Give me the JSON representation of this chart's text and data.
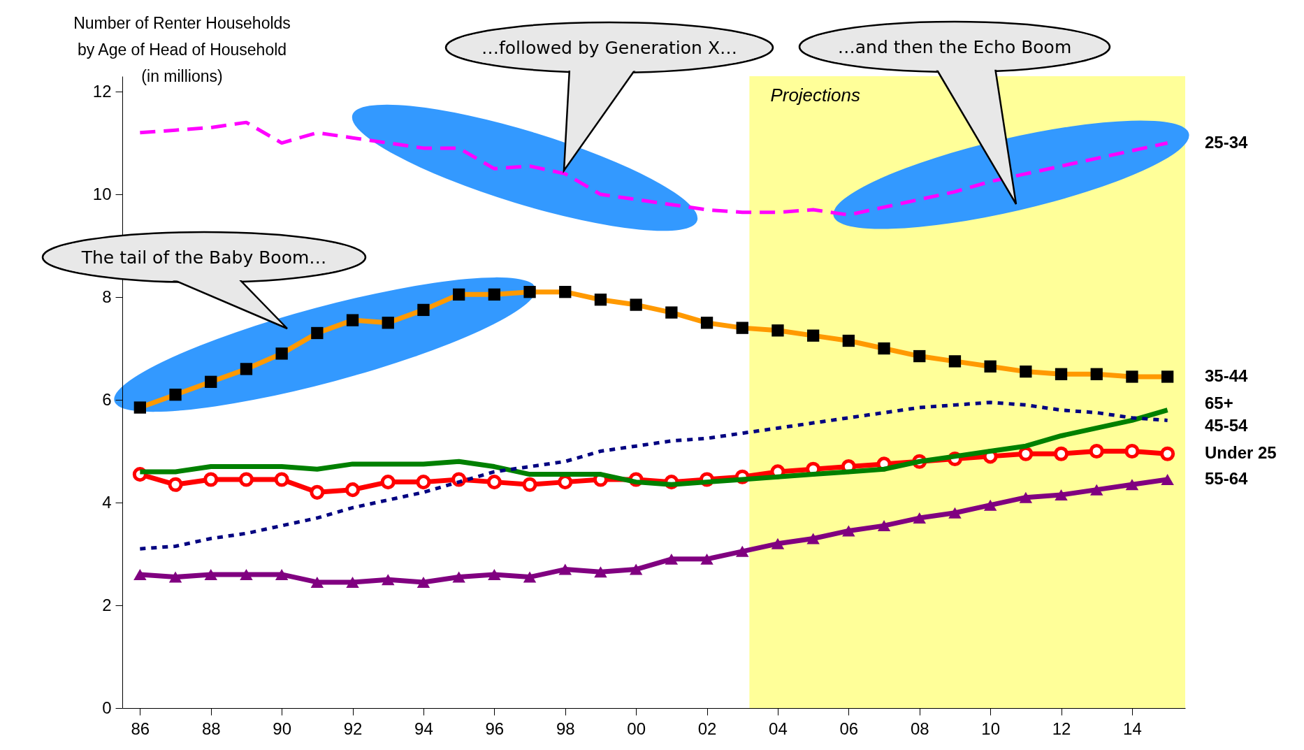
{
  "chart_data": {
    "type": "line",
    "ylabel": "Number of Renter Households\nby Age of Head of Household\n(in millions)",
    "x": [
      1986,
      1987,
      1988,
      1989,
      1990,
      1991,
      1992,
      1993,
      1994,
      1995,
      1996,
      1997,
      1998,
      1999,
      2000,
      2001,
      2002,
      2003,
      2004,
      2005,
      2006,
      2007,
      2008,
      2009,
      2010,
      2011,
      2012,
      2013,
      2014,
      2015
    ],
    "series": [
      {
        "name": "25-34",
        "color": "#ff00ff",
        "line_style": "dashed",
        "marker": "none",
        "values": [
          11.2,
          11.25,
          11.3,
          11.4,
          11.0,
          11.2,
          11.1,
          11.0,
          10.9,
          10.9,
          10.5,
          10.55,
          10.4,
          10.0,
          9.9,
          9.8,
          9.7,
          9.65,
          9.65,
          9.7,
          9.6,
          9.75,
          9.9,
          10.05,
          10.25,
          10.4,
          10.55,
          10.7,
          10.85,
          11.0
        ]
      },
      {
        "name": "35-44",
        "color": "#ff9900",
        "line_style": "solid",
        "marker": "square",
        "values": [
          5.85,
          6.1,
          6.35,
          6.6,
          6.9,
          7.3,
          7.55,
          7.5,
          7.75,
          8.05,
          8.05,
          8.1,
          8.1,
          7.95,
          7.85,
          7.7,
          7.5,
          7.4,
          7.35,
          7.25,
          7.15,
          7.0,
          6.85,
          6.75,
          6.65,
          6.55,
          6.5,
          6.5,
          6.45,
          6.45
        ]
      },
      {
        "name": "65+",
        "color": "#008000",
        "line_style": "solid",
        "marker": "none",
        "values": [
          4.6,
          4.6,
          4.7,
          4.7,
          4.7,
          4.65,
          4.75,
          4.75,
          4.75,
          4.8,
          4.7,
          4.55,
          4.55,
          4.55,
          4.4,
          4.35,
          4.4,
          4.45,
          4.5,
          4.55,
          4.6,
          4.65,
          4.8,
          4.9,
          5.0,
          5.1,
          5.3,
          5.45,
          5.6,
          5.8
        ]
      },
      {
        "name": "45-54",
        "color": "#000080",
        "line_style": "dotted",
        "marker": "none",
        "values": [
          3.1,
          3.15,
          3.3,
          3.4,
          3.55,
          3.7,
          3.9,
          4.05,
          4.2,
          4.4,
          4.6,
          4.7,
          4.8,
          5.0,
          5.1,
          5.2,
          5.25,
          5.35,
          5.45,
          5.55,
          5.65,
          5.75,
          5.85,
          5.9,
          5.95,
          5.9,
          5.8,
          5.75,
          5.65,
          5.6
        ]
      },
      {
        "name": "Under 25",
        "color": "#ff0000",
        "line_style": "solid",
        "marker": "circle",
        "values": [
          4.55,
          4.35,
          4.45,
          4.45,
          4.45,
          4.2,
          4.25,
          4.4,
          4.4,
          4.45,
          4.4,
          4.35,
          4.4,
          4.45,
          4.45,
          4.4,
          4.45,
          4.5,
          4.6,
          4.65,
          4.7,
          4.75,
          4.8,
          4.85,
          4.9,
          4.95,
          4.95,
          5.0,
          5.0,
          4.95
        ]
      },
      {
        "name": "55-64",
        "color": "#800080",
        "line_style": "solid",
        "marker": "triangle",
        "values": [
          2.6,
          2.55,
          2.6,
          2.6,
          2.6,
          2.45,
          2.45,
          2.5,
          2.45,
          2.55,
          2.6,
          2.55,
          2.7,
          2.65,
          2.7,
          2.9,
          2.9,
          3.05,
          3.2,
          3.3,
          3.45,
          3.55,
          3.7,
          3.8,
          3.95,
          4.1,
          4.15,
          4.25,
          4.35,
          4.45
        ]
      }
    ],
    "xlim": [
      1985.5,
      2015.5
    ],
    "xticks": [
      {
        "value": 1986,
        "label": "86"
      },
      {
        "value": 1988,
        "label": "88"
      },
      {
        "value": 1990,
        "label": "90"
      },
      {
        "value": 1992,
        "label": "92"
      },
      {
        "value": 1994,
        "label": "94"
      },
      {
        "value": 1996,
        "label": "96"
      },
      {
        "value": 1998,
        "label": "98"
      },
      {
        "value": 2000,
        "label": "00"
      },
      {
        "value": 2002,
        "label": "02"
      },
      {
        "value": 2004,
        "label": "04"
      },
      {
        "value": 2006,
        "label": "06"
      },
      {
        "value": 2008,
        "label": "08"
      },
      {
        "value": 2010,
        "label": "10"
      },
      {
        "value": 2012,
        "label": "12"
      },
      {
        "value": 2014,
        "label": "14"
      }
    ],
    "ylim": [
      0,
      12.3
    ],
    "yticks": [
      0,
      2,
      4,
      6,
      8,
      10,
      12
    ],
    "grid": false,
    "bands": [
      {
        "axis": "x",
        "from": 2003.2,
        "to": 2015.5,
        "label": "Projections",
        "color": "#ffff99"
      }
    ],
    "annotations": [
      "The tail of the Baby Boom…",
      "…followed by Generation X…",
      "…and then the Echo Boom"
    ]
  }
}
